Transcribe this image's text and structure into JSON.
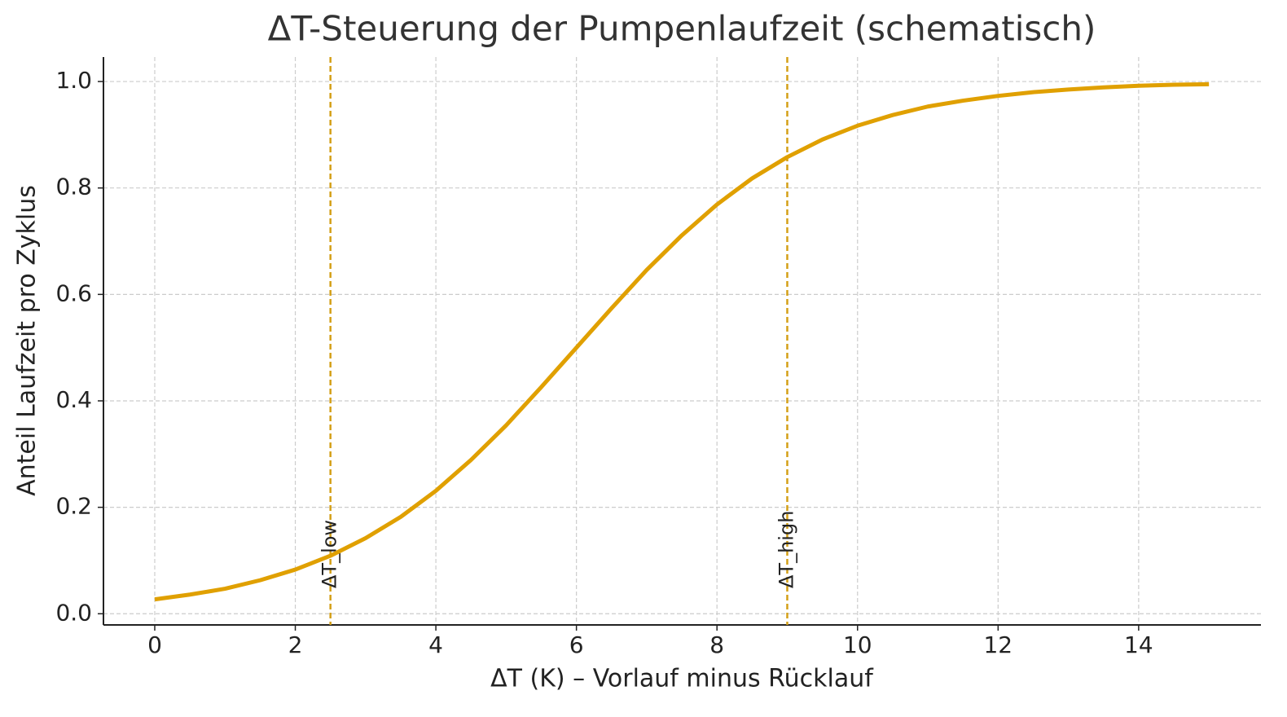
{
  "chart_data": {
    "type": "line",
    "title": "ΔT-Steuerung der Pumpenlaufzeit (schematisch)",
    "x_label": "ΔT (K) – Vorlauf minus Rücklauf",
    "y_label": "Anteil Laufzeit pro Zyklus",
    "x": [
      0,
      0.5,
      1,
      1.5,
      2,
      2.5,
      3,
      3.5,
      4,
      4.5,
      5,
      5.5,
      6,
      6.5,
      7,
      7.5,
      8,
      8.5,
      9,
      9.5,
      10,
      10.5,
      11,
      11.5,
      12,
      12.5,
      13,
      13.5,
      14,
      14.5,
      15
    ],
    "series": [
      {
        "color": "#e0a000",
        "values": [
          0.027,
          0.036,
          0.047,
          0.063,
          0.083,
          0.109,
          0.142,
          0.182,
          0.231,
          0.289,
          0.354,
          0.426,
          0.5,
          0.574,
          0.646,
          0.711,
          0.769,
          0.818,
          0.858,
          0.891,
          0.917,
          0.937,
          0.953,
          0.964,
          0.973,
          0.98,
          0.985,
          0.989,
          0.992,
          0.994,
          0.995
        ]
      }
    ],
    "vlines": [
      {
        "x": 2.5,
        "label": "ΔT_low",
        "color": "#d4a017"
      },
      {
        "x": 9,
        "label": "ΔT_high",
        "color": "#d4a017"
      }
    ],
    "xlim": [
      -0.73,
      15.74
    ],
    "ylim": [
      -0.021,
      1.046
    ],
    "xticks": [
      0,
      2,
      4,
      6,
      8,
      10,
      12,
      14
    ],
    "yticks": [
      {
        "value": 0,
        "label": "0.0"
      },
      {
        "value": 0.2,
        "label": "0.2"
      },
      {
        "value": 0.4,
        "label": "0.4"
      },
      {
        "value": 0.6,
        "label": "0.6"
      },
      {
        "value": 0.8,
        "label": "0.8"
      },
      {
        "value": 1,
        "label": "1.0"
      }
    ],
    "grid": true
  }
}
